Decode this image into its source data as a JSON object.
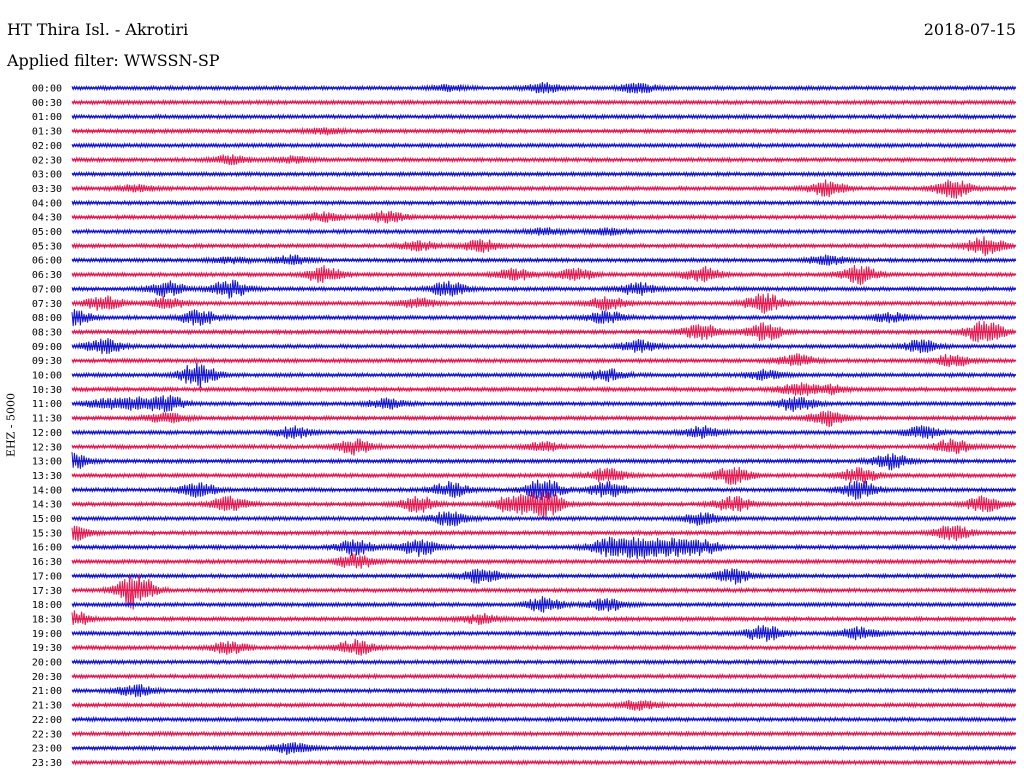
{
  "header": {
    "title": "HT Thira Isl. - Akrotiri",
    "date": "2018-07-15",
    "filter": "Applied filter: WWSSN-SP"
  },
  "chart_data": {
    "type": "helicorder",
    "ylabel": "EHZ - 5000",
    "row_labels": [
      "00:00",
      "00:30",
      "01:00",
      "01:30",
      "02:00",
      "02:30",
      "03:00",
      "03:30",
      "04:00",
      "04:30",
      "05:00",
      "05:30",
      "06:00",
      "06:30",
      "07:00",
      "07:30",
      "08:00",
      "08:30",
      "09:00",
      "09:30",
      "10:00",
      "10:30",
      "11:00",
      "11:30",
      "12:00",
      "12:30",
      "13:00",
      "13:30",
      "14:00",
      "14:30",
      "15:00",
      "15:30",
      "16:00",
      "16:30",
      "17:00",
      "17:30",
      "18:00",
      "18:30",
      "19:00",
      "19:30",
      "20:00",
      "20:30",
      "21:00",
      "21:30",
      "22:00",
      "22:30",
      "23:00",
      "23:30"
    ],
    "trace_colors": [
      "#1414d2",
      "#e8174f"
    ],
    "row_minutes": 30,
    "events": [
      {
        "row": 0,
        "minute": 12,
        "amp": 2
      },
      {
        "row": 0,
        "minute": 15,
        "amp": 3
      },
      {
        "row": 0,
        "minute": 18,
        "amp": 3
      },
      {
        "row": 3,
        "minute": 8,
        "amp": 2
      },
      {
        "row": 5,
        "minute": 5,
        "amp": 3
      },
      {
        "row": 5,
        "minute": 7,
        "amp": 2
      },
      {
        "row": 7,
        "minute": 2,
        "amp": 2
      },
      {
        "row": 7,
        "minute": 24,
        "amp": 5
      },
      {
        "row": 7,
        "minute": 28,
        "amp": 6
      },
      {
        "row": 9,
        "minute": 8,
        "amp": 3
      },
      {
        "row": 9,
        "minute": 10,
        "amp": 4
      },
      {
        "row": 10,
        "minute": 15,
        "amp": 2
      },
      {
        "row": 10,
        "minute": 17,
        "amp": 2
      },
      {
        "row": 11,
        "minute": 11,
        "amp": 3
      },
      {
        "row": 11,
        "minute": 13,
        "amp": 4
      },
      {
        "row": 11,
        "minute": 29,
        "amp": 6
      },
      {
        "row": 12,
        "minute": 5,
        "amp": 2
      },
      {
        "row": 12,
        "minute": 7,
        "amp": 3
      },
      {
        "row": 12,
        "minute": 24,
        "amp": 3
      },
      {
        "row": 13,
        "minute": 8,
        "amp": 5
      },
      {
        "row": 13,
        "minute": 14,
        "amp": 4
      },
      {
        "row": 13,
        "minute": 16,
        "amp": 4
      },
      {
        "row": 13,
        "minute": 20,
        "amp": 5
      },
      {
        "row": 13,
        "minute": 25,
        "amp": 6
      },
      {
        "row": 14,
        "minute": 3,
        "amp": 5
      },
      {
        "row": 14,
        "minute": 5,
        "amp": 6
      },
      {
        "row": 14,
        "minute": 12,
        "amp": 5
      },
      {
        "row": 14,
        "minute": 18,
        "amp": 4
      },
      {
        "row": 15,
        "minute": 1,
        "amp": 5
      },
      {
        "row": 15,
        "minute": 3,
        "amp": 4
      },
      {
        "row": 15,
        "minute": 11,
        "amp": 3
      },
      {
        "row": 15,
        "minute": 17,
        "amp": 4
      },
      {
        "row": 15,
        "minute": 22,
        "amp": 6
      },
      {
        "row": 16,
        "minute": 0,
        "amp": 5
      },
      {
        "row": 16,
        "minute": 4,
        "amp": 5
      },
      {
        "row": 16,
        "minute": 17,
        "amp": 4
      },
      {
        "row": 16,
        "minute": 26,
        "amp": 3
      },
      {
        "row": 17,
        "minute": 20,
        "amp": 5
      },
      {
        "row": 17,
        "minute": 22,
        "amp": 6
      },
      {
        "row": 17,
        "minute": 29,
        "amp": 8
      },
      {
        "row": 18,
        "minute": 1,
        "amp": 5
      },
      {
        "row": 18,
        "minute": 18,
        "amp": 4
      },
      {
        "row": 18,
        "minute": 27,
        "amp": 4
      },
      {
        "row": 19,
        "minute": 23,
        "amp": 4
      },
      {
        "row": 19,
        "minute": 28,
        "amp": 4
      },
      {
        "row": 20,
        "minute": 4,
        "amp": 8
      },
      {
        "row": 20,
        "minute": 17,
        "amp": 4
      },
      {
        "row": 20,
        "minute": 22,
        "amp": 3
      },
      {
        "row": 21,
        "minute": 23,
        "amp": 4
      },
      {
        "row": 21,
        "minute": 24,
        "amp": 3
      },
      {
        "row": 22,
        "minute": 1,
        "amp": 3
      },
      {
        "row": 22,
        "minute": 2,
        "amp": 4
      },
      {
        "row": 22,
        "minute": 3,
        "amp": 5
      },
      {
        "row": 22,
        "minute": 10,
        "amp": 3
      },
      {
        "row": 22,
        "minute": 23,
        "amp": 5
      },
      {
        "row": 23,
        "minute": 3,
        "amp": 4
      },
      {
        "row": 23,
        "minute": 24,
        "amp": 5
      },
      {
        "row": 24,
        "minute": 7,
        "amp": 4
      },
      {
        "row": 24,
        "minute": 20,
        "amp": 4
      },
      {
        "row": 24,
        "minute": 27,
        "amp": 4
      },
      {
        "row": 25,
        "minute": 9,
        "amp": 5
      },
      {
        "row": 25,
        "minute": 15,
        "amp": 3
      },
      {
        "row": 25,
        "minute": 28,
        "amp": 5
      },
      {
        "row": 26,
        "minute": 0,
        "amp": 5
      },
      {
        "row": 26,
        "minute": 26,
        "amp": 5
      },
      {
        "row": 27,
        "minute": 17,
        "amp": 5
      },
      {
        "row": 27,
        "minute": 21,
        "amp": 6
      },
      {
        "row": 27,
        "minute": 25,
        "amp": 5
      },
      {
        "row": 28,
        "minute": 4,
        "amp": 5
      },
      {
        "row": 28,
        "minute": 12,
        "amp": 5
      },
      {
        "row": 28,
        "minute": 15,
        "amp": 7
      },
      {
        "row": 28,
        "minute": 17,
        "amp": 5
      },
      {
        "row": 28,
        "minute": 25,
        "amp": 6
      },
      {
        "row": 29,
        "minute": 5,
        "amp": 5
      },
      {
        "row": 29,
        "minute": 11,
        "amp": 5
      },
      {
        "row": 29,
        "minute": 14,
        "amp": 6
      },
      {
        "row": 29,
        "minute": 15,
        "amp": 9
      },
      {
        "row": 29,
        "minute": 21,
        "amp": 5
      },
      {
        "row": 29,
        "minute": 29,
        "amp": 5
      },
      {
        "row": 30,
        "minute": 12,
        "amp": 5
      },
      {
        "row": 30,
        "minute": 20,
        "amp": 4
      },
      {
        "row": 31,
        "minute": 0,
        "amp": 5
      },
      {
        "row": 31,
        "minute": 28,
        "amp": 5
      },
      {
        "row": 32,
        "minute": 9,
        "amp": 5
      },
      {
        "row": 32,
        "minute": 11,
        "amp": 6
      },
      {
        "row": 32,
        "minute": 17,
        "amp": 6
      },
      {
        "row": 32,
        "minute": 18,
        "amp": 7
      },
      {
        "row": 32,
        "minute": 19,
        "amp": 6
      },
      {
        "row": 32,
        "minute": 20,
        "amp": 5
      },
      {
        "row": 33,
        "minute": 9,
        "amp": 5
      },
      {
        "row": 34,
        "minute": 13,
        "amp": 5
      },
      {
        "row": 34,
        "minute": 21,
        "amp": 5
      },
      {
        "row": 35,
        "minute": 2,
        "amp": 12
      },
      {
        "row": 36,
        "minute": 15,
        "amp": 5
      },
      {
        "row": 36,
        "minute": 17,
        "amp": 4
      },
      {
        "row": 37,
        "minute": 0,
        "amp": 5
      },
      {
        "row": 37,
        "minute": 13,
        "amp": 3
      },
      {
        "row": 38,
        "minute": 22,
        "amp": 5
      },
      {
        "row": 38,
        "minute": 25,
        "amp": 4
      },
      {
        "row": 39,
        "minute": 5,
        "amp": 4
      },
      {
        "row": 39,
        "minute": 9,
        "amp": 5
      },
      {
        "row": 42,
        "minute": 2,
        "amp": 4
      },
      {
        "row": 43,
        "minute": 18,
        "amp": 3
      },
      {
        "row": 46,
        "minute": 7,
        "amp": 4
      }
    ]
  }
}
